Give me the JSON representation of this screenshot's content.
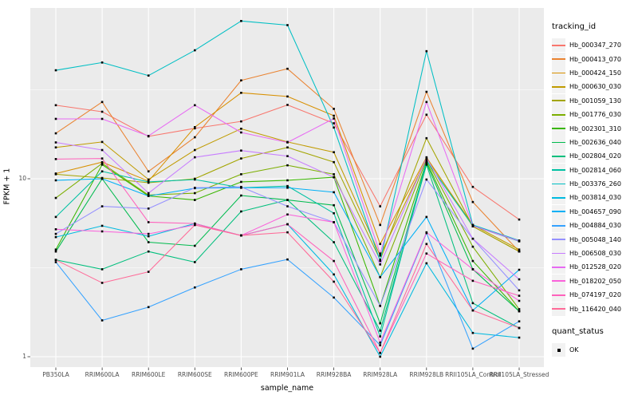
{
  "figure": {
    "background": "#FFFFFF",
    "panel_background": "#EBEBEB",
    "grid_color": "#FFFFFF",
    "tick_color": "#333333",
    "tick_label_color": "#4D4D4D",
    "point_color": "#000000",
    "legend_key_background": "#F2F2F2"
  },
  "chart_data": {
    "type": "line",
    "title": "",
    "xlabel": "sample_name",
    "ylabel": "FPKM + 1",
    "y_scale": "log10",
    "ylim": [
      1,
      91
    ],
    "grid": "on",
    "legend_position": "right",
    "y_ticks": [
      {
        "value": 10,
        "label": "10"
      },
      {
        "value": 1,
        "label": "1"
      }
    ],
    "y_minor_gridlines": [
      31.62,
      3.162
    ],
    "categories": [
      "PB350LA",
      "RRIM600LA",
      "RRIM600LE",
      "RRIM600SE",
      "RRIM600PE",
      "RRIM901LA",
      "RRIM928BA",
      "RRIM928LA",
      "RRIM928LB",
      "RRII105LA_Control",
      "RRII105LA_Stressed"
    ],
    "series": [
      {
        "name": "Hb_000347_270",
        "color": "#F8766D",
        "values": [
          25.9,
          23.8,
          17.3,
          19.2,
          21.0,
          26.0,
          20.5,
          7.0,
          22.9,
          9.0,
          5.9
        ]
      },
      {
        "name": "Hb_000413_070",
        "color": "#EA8331",
        "values": [
          18.0,
          27.0,
          11.0,
          17.1,
          35.7,
          41.5,
          24.7,
          5.5,
          30.8,
          7.4,
          3.9
        ]
      },
      {
        "name": "Hb_000424_150",
        "color": "#D89000",
        "values": [
          10.7,
          12.4,
          9.7,
          19.5,
          30.4,
          29.0,
          22.6,
          4.3,
          13.2,
          5.4,
          3.9
        ]
      },
      {
        "name": "Hb_000630_030",
        "color": "#C09B00",
        "values": [
          15.0,
          16.1,
          9.9,
          14.5,
          19.1,
          16.1,
          14.1,
          3.7,
          13.0,
          5.5,
          4.0
        ]
      },
      {
        "name": "Hb_001059_130",
        "color": "#A3A500",
        "values": [
          10.6,
          10.1,
          9.5,
          10.0,
          13.0,
          15.0,
          12.4,
          3.5,
          16.9,
          5.4,
          3.9
        ]
      },
      {
        "name": "Hb_001776_030",
        "color": "#7CAE00",
        "values": [
          7.8,
          12.2,
          8.1,
          8.3,
          10.6,
          11.9,
          10.6,
          2.8,
          12.8,
          4.15,
          1.85
        ]
      },
      {
        "name": "Hb_002301_310",
        "color": "#39B600",
        "values": [
          4.0,
          12.0,
          8.0,
          7.6,
          9.6,
          9.8,
          10.2,
          1.93,
          12.5,
          3.45,
          1.8
        ]
      },
      {
        "name": "Hb_002636_040",
        "color": "#00BB4E",
        "values": [
          3.9,
          10.0,
          4.4,
          4.2,
          8.05,
          7.6,
          7.1,
          1.54,
          12.2,
          3.1,
          1.8
        ]
      },
      {
        "name": "Hb_002804_020",
        "color": "#00BF7D",
        "values": [
          3.5,
          3.1,
          3.9,
          3.4,
          6.55,
          7.6,
          4.4,
          1.4,
          12.0,
          2.0,
          1.45
        ]
      },
      {
        "name": "Hb_002814_060",
        "color": "#00C1A3",
        "values": [
          6.1,
          11.0,
          9.6,
          9.9,
          8.9,
          9.1,
          6.4,
          1.3,
          12.6,
          5.44,
          4.45
        ]
      },
      {
        "name": "Hb_003376_260",
        "color": "#00BFC4",
        "values": [
          40.7,
          45.0,
          38.0,
          52.7,
          77.0,
          73.0,
          19.4,
          3.45,
          52.1,
          5.5,
          4.5
        ]
      },
      {
        "name": "Hb_003814_030",
        "color": "#00BAE0",
        "values": [
          4.7,
          5.44,
          4.75,
          5.6,
          4.8,
          5.55,
          2.9,
          1.0,
          3.35,
          1.36,
          1.28
        ]
      },
      {
        "name": "Hb_004657_090",
        "color": "#00B0F6",
        "values": [
          9.8,
          10.0,
          8.0,
          8.85,
          8.9,
          8.9,
          8.4,
          2.8,
          6.1,
          1.82,
          3.08
        ]
      },
      {
        "name": "Hb_004884_030",
        "color": "#35A2FF",
        "values": [
          3.4,
          1.6,
          1.9,
          2.45,
          3.1,
          3.52,
          2.15,
          1.16,
          4.95,
          1.11,
          1.58
        ]
      },
      {
        "name": "Hb_005048_140",
        "color": "#9590FF",
        "values": [
          4.9,
          7.0,
          6.8,
          8.9,
          9.0,
          7.0,
          5.7,
          1.93,
          9.9,
          4.6,
          2.36
        ]
      },
      {
        "name": "Hb_006508_030",
        "color": "#C77CFF",
        "values": [
          16.0,
          14.5,
          8.3,
          13.2,
          14.4,
          13.4,
          10.2,
          3.3,
          13.1,
          4.6,
          2.72
        ]
      },
      {
        "name": "Hb_012528_020",
        "color": "#E76BF3",
        "values": [
          21.7,
          21.7,
          17.4,
          25.9,
          18.2,
          16.0,
          21.8,
          3.8,
          27.0,
          5.44,
          4.47
        ]
      },
      {
        "name": "Hb_018202_050",
        "color": "#FA62DB",
        "values": [
          5.2,
          5.06,
          4.9,
          5.5,
          4.8,
          6.3,
          5.7,
          1.2,
          5.0,
          3.1,
          2.06
        ]
      },
      {
        "name": "Hb_074197_020",
        "color": "#FF62BC",
        "values": [
          12.9,
          13.0,
          5.7,
          5.6,
          4.8,
          5.55,
          3.45,
          1.05,
          3.8,
          2.67,
          2.2
        ]
      },
      {
        "name": "Hb_116420_040",
        "color": "#FF6A98",
        "values": [
          3.5,
          2.6,
          3.0,
          5.5,
          4.8,
          5.0,
          2.64,
          1.05,
          4.3,
          1.82,
          1.45
        ]
      }
    ],
    "legend": {
      "tracking_title": "tracking_id",
      "quant_title": "quant_status",
      "quant_ok_label": "OK"
    }
  }
}
